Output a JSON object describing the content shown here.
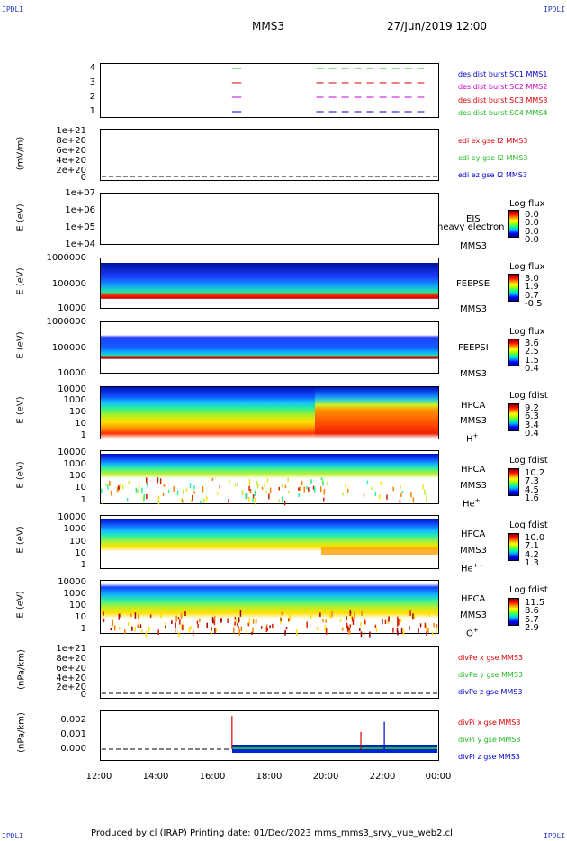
{
  "corner_left": "IPDLI",
  "corner_right": "IPDLI",
  "header": {
    "spacecraft": "MMS3",
    "datetime": "27/Jun/2019 12:00"
  },
  "footer": "Produced by cl (IRAP)   Printing date: 01/Dec/2023   mms_mms3_srvy_vue_web2.cl",
  "x_ticks": [
    "12:00",
    "14:00",
    "16:00",
    "18:00",
    "20:00",
    "22:00",
    "00:00"
  ],
  "colors": {
    "red": "#dd0000",
    "green": "#22bb22",
    "blue": "#0000cc",
    "magenta": "#cc00cc"
  },
  "panels": {
    "p1": {
      "yticks": [
        "4",
        "3",
        "2",
        "1"
      ],
      "legend": [
        {
          "text": "des dist burst SC1 MMS1",
          "color": "#0000cc"
        },
        {
          "text": "des dist burst SC2 MMS2",
          "color": "#cc00cc"
        },
        {
          "text": "des dist burst SC3 MMS3",
          "color": "#dd0000"
        },
        {
          "text": "des dist burst SC4 MMS4",
          "color": "#22bb22"
        }
      ]
    },
    "p2": {
      "ylabel": "(mV/m)",
      "yticks": [
        "1e+21",
        "8e+20",
        "6e+20",
        "4e+20",
        "2e+20",
        "0"
      ],
      "legend": [
        {
          "text": "edi ex gse l2 MMS3",
          "color": "#dd0000"
        },
        {
          "text": "edi ey gse l2 MMS3",
          "color": "#22bb22"
        },
        {
          "text": "edi ez gse l2 MMS3",
          "color": "#0000cc"
        }
      ]
    },
    "p3": {
      "ylabel": "E (eV)",
      "yticks": [
        "1e+07",
        "1e+06",
        "1e+05",
        "1e+04"
      ],
      "name": "EIS",
      "overlay": "heavy electron to",
      "sc": "MMS3",
      "cb_title": "Log flux",
      "cb_vals": [
        "0.0",
        "0.0",
        "0.0",
        "0.0"
      ]
    },
    "p4": {
      "ylabel": "E (eV)",
      "yticks": [
        "1000000",
        "100000",
        "10000"
      ],
      "name": "FEEPSE",
      "sc": "MMS3",
      "cb_title": "Log flux",
      "cb_vals": [
        "3.0",
        "1.9",
        "0.7",
        "-0.5"
      ]
    },
    "p5": {
      "ylabel": "E (eV)",
      "yticks": [
        "1000000",
        "100000",
        "10000"
      ],
      "name": "FEEPSI",
      "sc": "MMS3",
      "cb_title": "Log flux",
      "cb_vals": [
        "3.6",
        "2.5",
        "1.5",
        "0.4"
      ]
    },
    "p6": {
      "ylabel": "E (eV)",
      "yticks": [
        "10000",
        "1000",
        "100",
        "10",
        "1"
      ],
      "name": "HPCA",
      "sc": "MMS3",
      "species": "H",
      "sup": "+",
      "cb_title": "Log fdist",
      "cb_vals": [
        "9.2",
        "6.3",
        "3.4",
        "0.4"
      ]
    },
    "p7": {
      "ylabel": "E (eV)",
      "yticks": [
        "10000",
        "1000",
        "100",
        "10",
        "1"
      ],
      "name": "HPCA",
      "sc": "MMS3",
      "species": "He",
      "sup": "+",
      "cb_title": "Log fdist",
      "cb_vals": [
        "10.2",
        "7.3",
        "4.5",
        "1.6"
      ]
    },
    "p8": {
      "ylabel": "E (eV)",
      "yticks": [
        "10000",
        "1000",
        "100",
        "10",
        "1"
      ],
      "name": "HPCA",
      "sc": "MMS3",
      "species": "He",
      "sup": "++",
      "cb_title": "Log fdist",
      "cb_vals": [
        "10.0",
        "7.1",
        "4.2",
        "1.3"
      ]
    },
    "p9": {
      "ylabel": "E (eV)",
      "yticks": [
        "10000",
        "1000",
        "100",
        "10",
        "1"
      ],
      "name": "HPCA",
      "sc": "MMS3",
      "species": "O",
      "sup": "+",
      "cb_title": "Log fdist",
      "cb_vals": [
        "11.5",
        "8.6",
        "5.7",
        "2.9"
      ]
    },
    "p10": {
      "ylabel": "(nPa/km)",
      "yticks": [
        "1e+21",
        "8e+20",
        "6e+20",
        "4e+20",
        "2e+20",
        "0"
      ],
      "legend": [
        {
          "text": "divPe x gse MMS3",
          "color": "#dd0000"
        },
        {
          "text": "divPe y gse MMS3",
          "color": "#22bb22"
        },
        {
          "text": "divPe z gse MMS3",
          "color": "#0000cc"
        }
      ]
    },
    "p11": {
      "ylabel": "(nPa/km)",
      "yticks": [
        "0.002",
        "0.001",
        "0.000"
      ],
      "legend": [
        {
          "text": "divPi x gse MMS3",
          "color": "#dd0000"
        },
        {
          "text": "divPi y gse MMS3",
          "color": "#22bb22"
        },
        {
          "text": "divPi z gse MMS3",
          "color": "#0000cc"
        }
      ]
    }
  },
  "chart_data": {
    "type": "heatmap",
    "x": [
      "12:00",
      "14:00",
      "16:00",
      "18:00",
      "20:00",
      "22:00",
      "00:00"
    ],
    "burst_intervals": [
      {
        "label": "4",
        "segments": [
          [
            "16:40",
            "17:00"
          ],
          [
            "19:40",
            "23:30"
          ]
        ]
      },
      {
        "label": "3",
        "segments": [
          [
            "16:40",
            "17:00"
          ],
          [
            "19:40",
            "23:30"
          ]
        ]
      },
      {
        "label": "2",
        "segments": [
          [
            "16:40",
            "17:00"
          ],
          [
            "19:40",
            "23:30"
          ]
        ]
      },
      {
        "label": "1",
        "segments": [
          [
            "16:40",
            "17:00"
          ],
          [
            "19:40",
            "23:30"
          ]
        ]
      }
    ],
    "divPi_spikes": [
      {
        "time": "16:40",
        "value": 0.0023,
        "color": "#dd0000"
      },
      {
        "time": "22:05",
        "value": 0.0019,
        "color": "#0000cc"
      },
      {
        "time": "21:15",
        "value": 0.0012,
        "color": "#dd0000"
      }
    ]
  }
}
